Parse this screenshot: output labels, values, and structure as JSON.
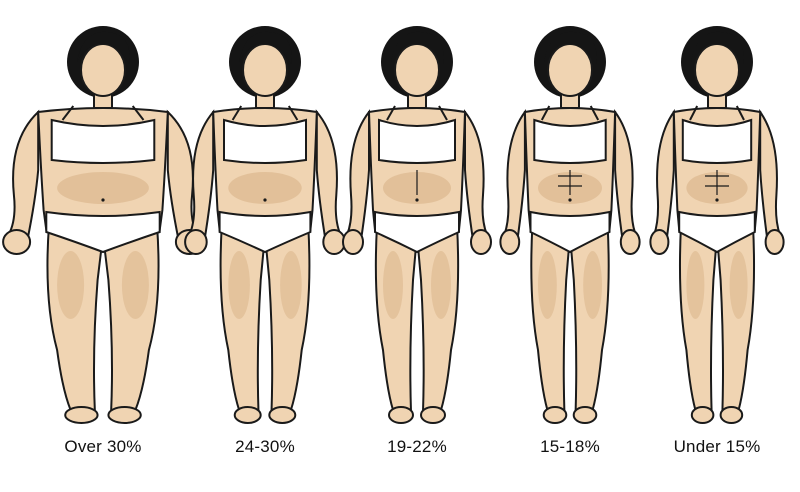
{
  "figures": [
    {
      "label": "Over 30%"
    },
    {
      "label": "24-30%"
    },
    {
      "label": "19-22%"
    },
    {
      "label": "15-18%"
    },
    {
      "label": "Under 15%"
    }
  ],
  "colors": {
    "skin": "#f0d4b2",
    "skin_shade": "#dcb88e",
    "hair": "#151515",
    "outline": "#1a1a1a",
    "underwear": "#ffffff",
    "label_text": "#111111"
  }
}
